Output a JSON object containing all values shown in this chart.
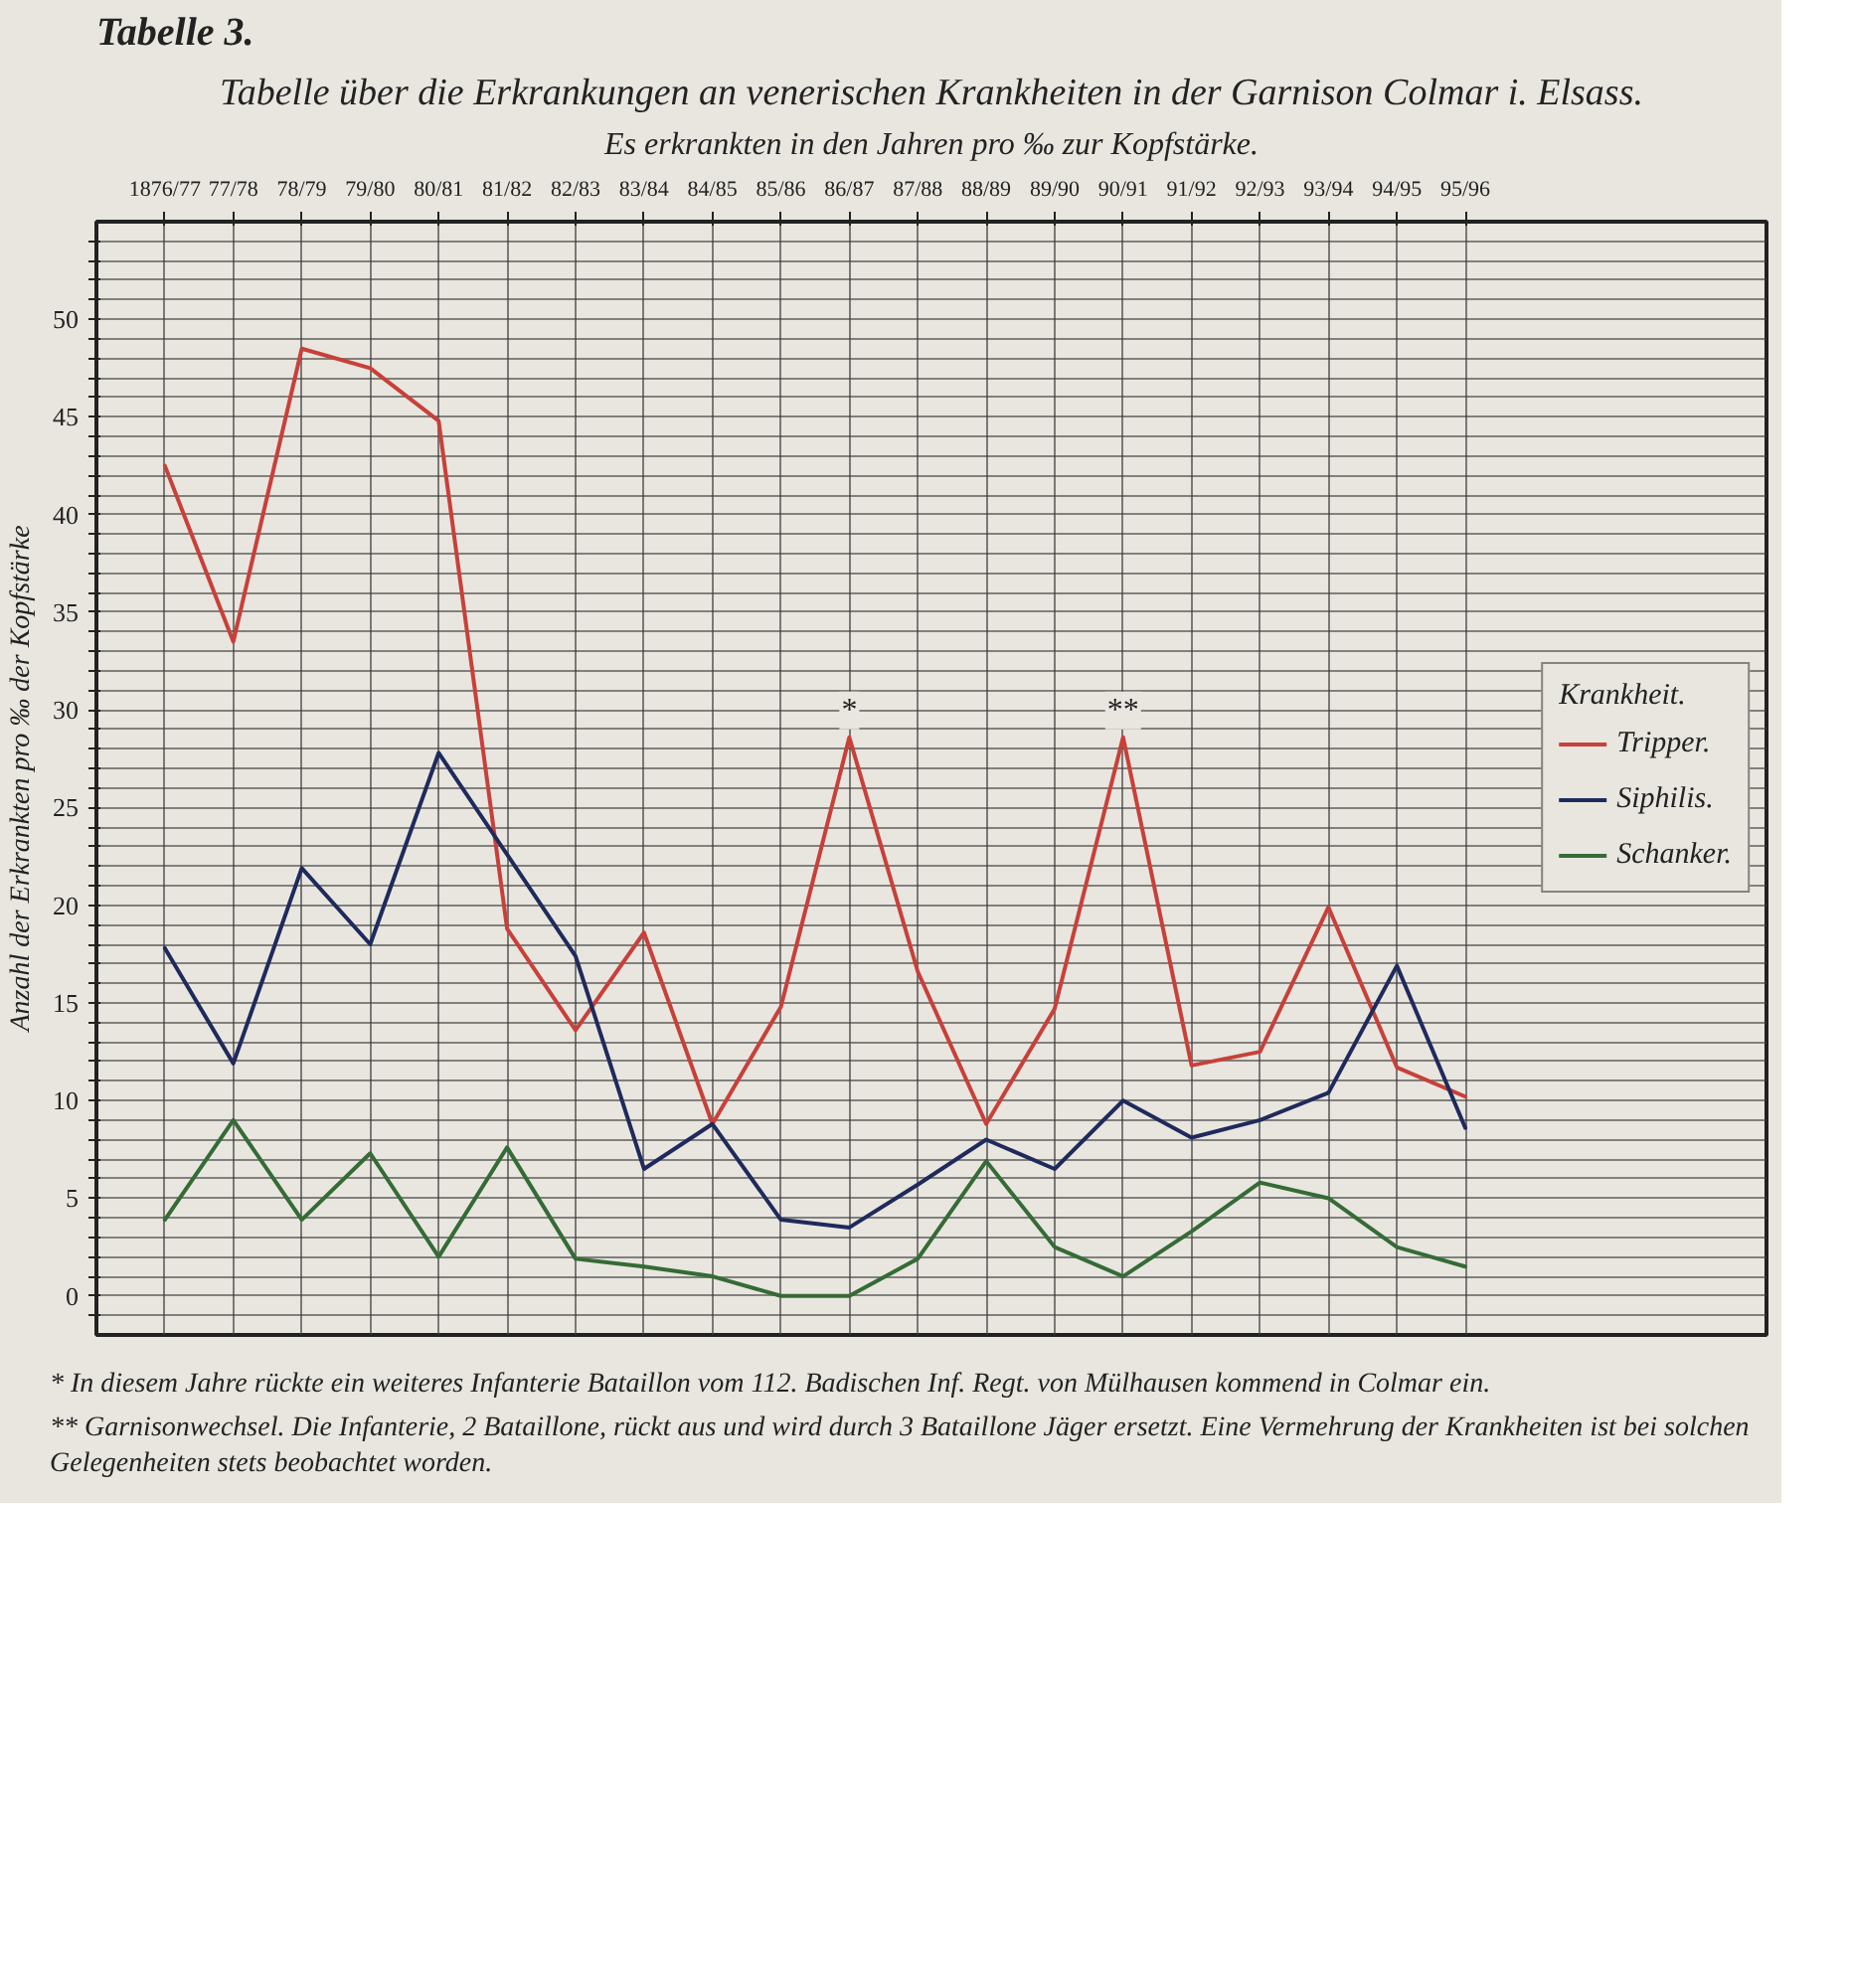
{
  "chart_data": {
    "type": "line",
    "title": "Tabelle 3.",
    "subtitle": "Tabelle über die Erkrankungen an venerischen Krankheiten in der Garnison Colmar i. Elsass.",
    "xlabel": "Es erkrankten in den Jahren pro ‰ zur Kopfstärke.",
    "ylabel": "Anzahl der Erkrankten pro ‰ der Kopfstärke",
    "legend_title": "Krankheit.",
    "categories": [
      "1876/77",
      "77/78",
      "78/79",
      "79/80",
      "80/81",
      "81/82",
      "82/83",
      "83/84",
      "84/85",
      "85/86",
      "86/87",
      "87/88",
      "88/89",
      "89/90",
      "90/91",
      "91/92",
      "92/93",
      "93/94",
      "94/95",
      "95/96"
    ],
    "series": [
      {
        "name": "Tripper.",
        "color": "#c8403a",
        "values": [
          42.5,
          33.5,
          48.5,
          47.5,
          44.8,
          18.8,
          13.6,
          18.6,
          8.8,
          14.8,
          28.6,
          16.6,
          8.8,
          14.7,
          28.6,
          11.8,
          12.5,
          19.9,
          11.7,
          10.2
        ]
      },
      {
        "name": "Siphilis.",
        "color": "#1f2a5c",
        "values": [
          17.8,
          11.9,
          21.9,
          18.0,
          27.8,
          22.6,
          17.4,
          6.5,
          8.8,
          3.9,
          3.5,
          5.7,
          8.0,
          6.5,
          10.0,
          8.1,
          9.0,
          10.4,
          16.9,
          8.6
        ]
      },
      {
        "name": "Schanker.",
        "color": "#356b35",
        "values": [
          3.9,
          9.0,
          3.9,
          7.3,
          2.0,
          7.6,
          1.9,
          1.5,
          1.0,
          0.0,
          0.0,
          1.9,
          6.9,
          2.5,
          1.0,
          3.3,
          5.8,
          5.0,
          2.5,
          1.5
        ]
      }
    ],
    "ylim": [
      -2,
      55
    ],
    "yticks": [
      {
        "value": -1,
        "label": null
      },
      0,
      {
        "value": 1,
        "label": null
      },
      {
        "value": 2,
        "label": null
      },
      {
        "value": 3,
        "label": null
      },
      {
        "value": 4,
        "label": null
      },
      5,
      {
        "value": 6,
        "label": null
      },
      {
        "value": 7,
        "label": null
      },
      {
        "value": 8,
        "label": null
      },
      {
        "value": 9,
        "label": null
      },
      10,
      {
        "value": 11,
        "label": null
      },
      {
        "value": 12,
        "label": null
      },
      {
        "value": 13,
        "label": null
      },
      {
        "value": 14,
        "label": null
      },
      15,
      {
        "value": 16,
        "label": null
      },
      {
        "value": 17,
        "label": null
      },
      {
        "value": 18,
        "label": null
      },
      {
        "value": 19,
        "label": null
      },
      20,
      {
        "value": 21,
        "label": null
      },
      {
        "value": 22,
        "label": null
      },
      {
        "value": 23,
        "label": null
      },
      {
        "value": 24,
        "label": null
      },
      25,
      {
        "value": 26,
        "label": null
      },
      {
        "value": 27,
        "label": null
      },
      {
        "value": 28,
        "label": null
      },
      {
        "value": 29,
        "label": null
      },
      30,
      {
        "value": 31,
        "label": null
      },
      {
        "value": 32,
        "label": null
      },
      {
        "value": 33,
        "label": null
      },
      {
        "value": 34,
        "label": null
      },
      35,
      {
        "value": 36,
        "label": null
      },
      {
        "value": 37,
        "label": null
      },
      {
        "value": 38,
        "label": null
      },
      {
        "value": 39,
        "label": null
      },
      40,
      {
        "value": 41,
        "label": null
      },
      {
        "value": 42,
        "label": null
      },
      {
        "value": 43,
        "label": null
      },
      {
        "value": 44,
        "label": null
      },
      45,
      {
        "value": 46,
        "label": null
      },
      {
        "value": 47,
        "label": null
      },
      {
        "value": 48,
        "label": null
      },
      {
        "value": 49,
        "label": null
      },
      50,
      {
        "value": 51,
        "label": null
      },
      {
        "value": 52,
        "label": null
      },
      {
        "value": 53,
        "label": null
      },
      {
        "value": 54,
        "label": null
      }
    ],
    "grid": true,
    "legend": "right",
    "annotations": [
      {
        "text": "*",
        "x": "86/87",
        "y": 28.6
      },
      {
        "text": "**",
        "x": "90/91",
        "y": 28.6
      },
      "* In diesem Jahre rückte ein weiteres Infanterie Bataillon vom 112. Badischen Inf. Regt. von Mülhausen kommend in Colmar ein.",
      "** Garnisonwechsel. Die Infanterie, 2 Bataillone, rückt aus und wird durch 3 Bataillone Jäger ersetzt. Eine Vermehrung der Krankheiten ist bei solchen Gelegenheiten stets beobachtet worden."
    ]
  }
}
